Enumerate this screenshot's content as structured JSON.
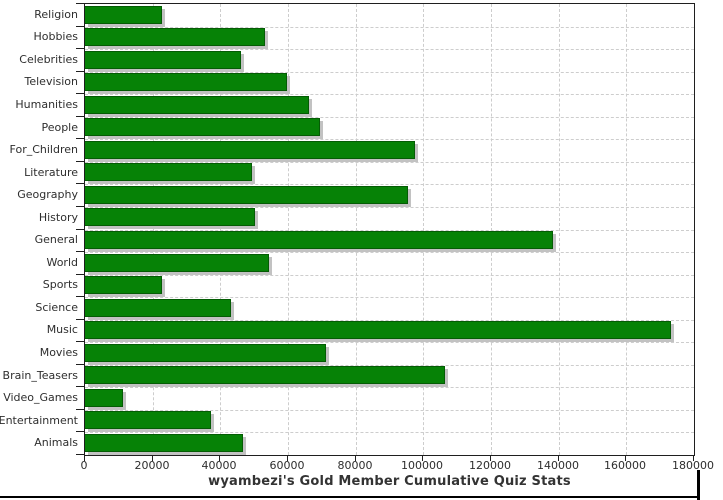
{
  "chart_data": {
    "type": "bar",
    "orientation": "horizontal",
    "title": "wyambezi's Gold Member Cumulative Quiz Stats",
    "categories": [
      "Religion",
      "Hobbies",
      "Celebrities",
      "Television",
      "Humanities",
      "People",
      "For_Children",
      "Literature",
      "Geography",
      "History",
      "General",
      "World",
      "Sports",
      "Science",
      "Music",
      "Movies",
      "Brain_Teasers",
      "Video_Games",
      "Entertainment",
      "Animals"
    ],
    "values": [
      22700,
      53300,
      46000,
      59700,
      66300,
      69500,
      97600,
      49300,
      95600,
      50100,
      138200,
      54400,
      22700,
      43100,
      173300,
      71100,
      106400,
      11300,
      37200,
      46600
    ],
    "xlabel": "",
    "ylabel": "",
    "xlim": [
      0,
      180000
    ],
    "xticks": [
      0,
      20000,
      40000,
      60000,
      80000,
      100000,
      120000,
      140000,
      160000,
      180000
    ],
    "grid": "dashed-both-axes",
    "legend": "none",
    "bar_color": "#068206",
    "bar_border_color": "#045c04",
    "bar_shadow_color": "#c2c2c2",
    "frame_color": "#1f1f1f",
    "grid_color": "#cdcdcd",
    "text_color": "#2e2e2e"
  }
}
